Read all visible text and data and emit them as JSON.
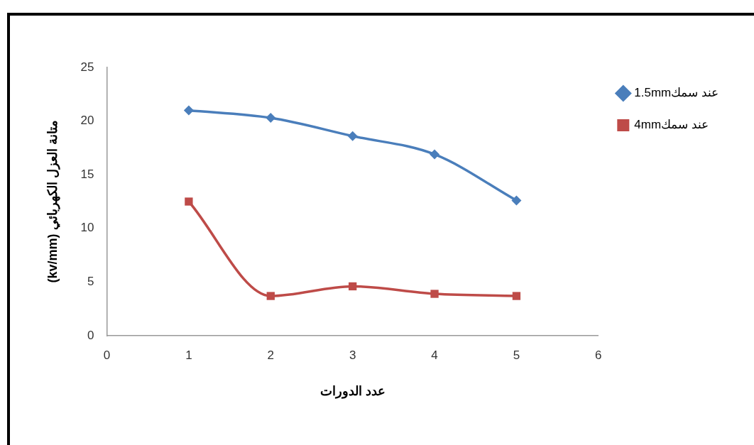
{
  "chart_data": {
    "type": "line",
    "xlabel": "عدد الدورات",
    "ylabel": "متانة العزل الكهربائي (kv/mm)",
    "x": [
      1,
      2,
      3,
      4,
      5
    ],
    "xlim": [
      0,
      6
    ],
    "xticks": [
      0,
      1,
      2,
      3,
      4,
      5,
      6
    ],
    "ylim": [
      0,
      25
    ],
    "yticks": [
      0,
      5,
      10,
      15,
      20,
      25
    ],
    "grid": false,
    "legend": "top right",
    "line_style": "solid",
    "series": [
      {
        "name": "عند سمك1.5mm",
        "color": "#4a7ebb",
        "marker": "diamond",
        "values": [
          21.0,
          20.3,
          18.6,
          16.9,
          12.6
        ]
      },
      {
        "name": "عند سمك4mm",
        "color": "#be4b48",
        "marker": "square",
        "values": [
          12.5,
          3.7,
          4.6,
          3.9,
          3.7
        ]
      }
    ]
  }
}
